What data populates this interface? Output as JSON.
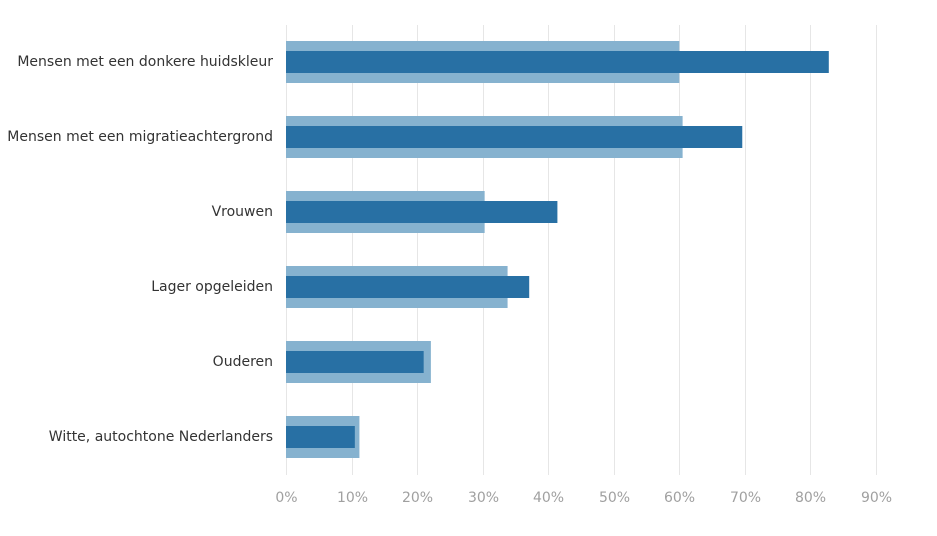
{
  "chart_data": {
    "type": "bar",
    "orientation": "horizontal",
    "categories": [
      "Mensen met een donkere huidskleur",
      "Mensen met een migratieachtergrond",
      "Vrouwen",
      "Lager opgeleiden",
      "Ouderen",
      "Witte, autochtone Nederlanders"
    ],
    "series": [
      {
        "values": [
          60,
          60.5,
          30.3,
          33.8,
          22.1,
          11.2
        ],
        "color": "#86b2cf"
      },
      {
        "values": [
          82.8,
          69.6,
          41.4,
          37.1,
          21,
          10.5
        ],
        "color": "#2870a4"
      }
    ],
    "xlim": [
      0,
      90
    ],
    "x_ticks": [
      "0%",
      "10%",
      "20%",
      "30%",
      "40%",
      "50%",
      "60%",
      "70%",
      "80%",
      "90%"
    ],
    "grid": "vertical",
    "legend": "none",
    "title": "",
    "xlabel": "",
    "ylabel": ""
  }
}
